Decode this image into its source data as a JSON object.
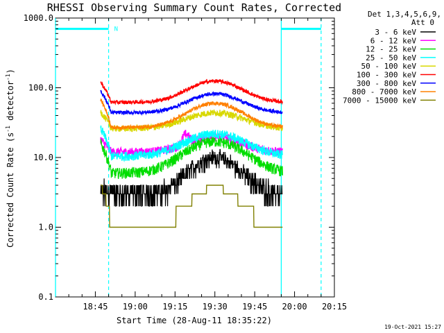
{
  "chart_data": {
    "type": "line",
    "title": "RHESSI Observing Summary Count Rates, Corrected",
    "xlabel": "Start Time (28-Aug-11 18:35:22)",
    "ylabel_main": "Corrected Count Rate (s",
    "ylabel_sup1": "-1",
    "ylabel_mid": " detector",
    "ylabel_sup2": "-1",
    "ylabel_end": ")",
    "yscale": "log",
    "ylim": [
      0.1,
      1000
    ],
    "x_range_min": [
      -5,
      100
    ],
    "yticks": [
      {
        "v": 1000,
        "label": "1000.0"
      },
      {
        "v": 100,
        "label": "100.0"
      },
      {
        "v": 10,
        "label": "10.0"
      },
      {
        "v": 1,
        "label": "1.0"
      },
      {
        "v": 0.1,
        "label": "0.1"
      }
    ],
    "xticks": [
      {
        "t": 10,
        "label": "18:45"
      },
      {
        "t": 25,
        "label": "19:00"
      },
      {
        "t": 40,
        "label": "19:15"
      },
      {
        "t": 55,
        "label": "19:30"
      },
      {
        "t": 70,
        "label": "19:45"
      },
      {
        "t": 85,
        "label": "20:00"
      },
      {
        "t": 100,
        "label": "20:15"
      }
    ],
    "data_window_min": [
      12,
      80.5
    ],
    "legend_header1": "Det 1,3,4,5,6,9,",
    "legend_header2": "Att 0",
    "series": [
      {
        "name": "3 - 6 keV",
        "color": "#000000",
        "base": 2.6,
        "peak": 9.5,
        "peak_t": 55,
        "width": 8,
        "noise": 0.09,
        "floor": 2.0,
        "start": 3.0
      },
      {
        "name": "6 - 12 keV",
        "color": "#ff00ff",
        "base": 12.0,
        "peak": 20.0,
        "peak_t": 55,
        "width": 9,
        "noise": 0.05,
        "start": 18.0,
        "bump_t": 44,
        "bump": 18.0
      },
      {
        "name": "12 - 25 keV",
        "color": "#00dd00",
        "base": 6.0,
        "peak": 17.0,
        "peak_t": 55,
        "width": 10,
        "noise": 0.06,
        "start": 16.0
      },
      {
        "name": "25 - 50 keV",
        "color": "#00ffff",
        "base": 10.5,
        "peak": 22.0,
        "peak_t": 55,
        "width": 10,
        "noise": 0.05,
        "start": 26.0
      },
      {
        "name": "50 - 100 keV",
        "color": "#d8d800",
        "base": 26.0,
        "peak": 44.0,
        "peak_t": 55,
        "width": 10,
        "noise": 0.035,
        "start": 45.0
      },
      {
        "name": "100 - 300 keV",
        "color": "#ff0000",
        "base": 62.0,
        "peak": 125.0,
        "peak_t": 55,
        "width": 9,
        "noise": 0.02,
        "start": 120.0
      },
      {
        "name": "300 - 800 keV",
        "color": "#0000ff",
        "base": 44.0,
        "peak": 82.0,
        "peak_t": 55,
        "width": 9,
        "noise": 0.02,
        "start": 90.0
      },
      {
        "name": "800 - 7000 keV",
        "color": "#ff8000",
        "base": 27.0,
        "peak": 60.0,
        "peak_t": 55,
        "width": 9,
        "noise": 0.02,
        "start": 68.0
      },
      {
        "name": "7000 - 15000 keV",
        "color": "#808000",
        "base": 1.0,
        "peak": 3.7,
        "peak_t": 55,
        "width": 8,
        "noise": 0.0,
        "floor": 1.0,
        "start": 4.0,
        "step": true
      }
    ],
    "shading_bars": [
      {
        "t0": -5,
        "t1": 15,
        "level": 700,
        "label": "N"
      },
      {
        "t0": 80,
        "t1": 95,
        "level": 700,
        "label": ""
      }
    ],
    "vlines_solid": [
      -5,
      80
    ],
    "vlines_dashed": [
      15,
      95
    ],
    "timestamp": "19-Oct-2021 15:27"
  }
}
